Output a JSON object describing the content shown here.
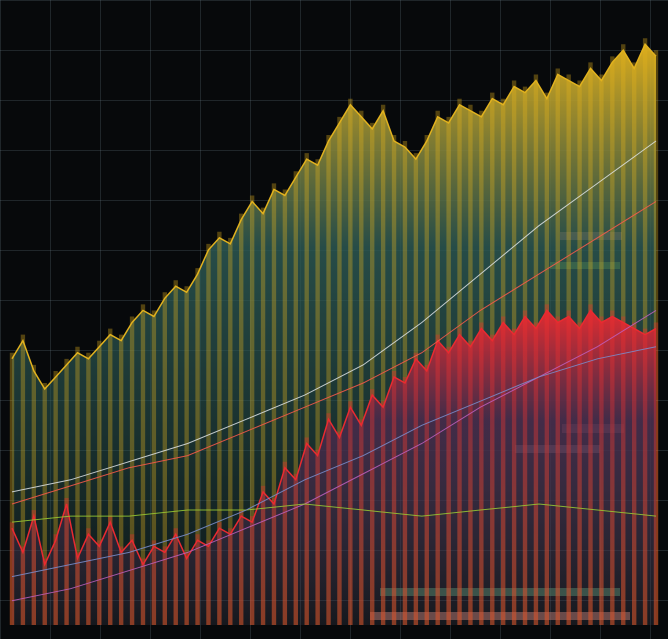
{
  "chart_data": {
    "type": "area",
    "ylim": [
      0,
      100
    ],
    "grid": true,
    "background": "#07090b",
    "series": [
      {
        "style": "area",
        "color": "#e2b21e",
        "gradient_to": "#2c5852",
        "values": [
          44,
          47,
          42,
          39,
          41,
          43,
          45,
          44,
          46,
          48,
          47,
          50,
          52,
          51,
          54,
          56,
          55,
          58,
          62,
          64,
          63,
          67,
          70,
          68,
          72,
          71,
          74,
          77,
          76,
          80,
          83,
          86,
          84,
          82,
          85,
          80,
          79,
          77,
          80,
          84,
          83,
          86,
          85,
          84,
          87,
          86,
          89,
          88,
          90,
          87,
          91,
          90,
          89,
          92,
          90,
          93,
          95,
          92,
          96,
          94
        ]
      },
      {
        "style": "area",
        "color": "#ea2a30",
        "gradient_to": "#4a2a4c",
        "values": [
          16,
          12,
          18,
          10,
          14,
          20,
          11,
          15,
          13,
          17,
          12,
          14,
          10,
          13,
          12,
          15,
          11,
          14,
          13,
          16,
          15,
          18,
          17,
          22,
          20,
          26,
          24,
          30,
          28,
          34,
          31,
          36,
          33,
          38,
          36,
          41,
          40,
          44,
          42,
          47,
          45,
          48,
          46,
          49,
          47,
          50,
          48,
          51,
          49,
          52,
          50,
          51,
          49,
          52,
          50,
          51,
          50,
          49,
          48,
          49
        ]
      },
      {
        "style": "line",
        "color": "#dfe4e8",
        "values": [
          22,
          24,
          27,
          30,
          34,
          38,
          43,
          50,
          58,
          66,
          73,
          80
        ]
      },
      {
        "style": "line",
        "color": "#ff5a4a",
        "values": [
          20,
          23,
          26,
          28,
          32,
          36,
          40,
          45,
          52,
          58,
          64,
          70
        ]
      },
      {
        "style": "line",
        "color": "#c060c0",
        "values": [
          4,
          6,
          9,
          12,
          16,
          20,
          25,
          30,
          36,
          41,
          46,
          52
        ]
      },
      {
        "style": "line",
        "color": "#9acd32",
        "values": [
          17,
          18,
          18,
          19,
          19,
          20,
          19,
          18,
          19,
          20,
          19,
          18
        ]
      },
      {
        "style": "line",
        "color": "#7a8fd0",
        "values": [
          8,
          10,
          12,
          15,
          19,
          24,
          28,
          33,
          37,
          41,
          44,
          46
        ]
      }
    ]
  }
}
